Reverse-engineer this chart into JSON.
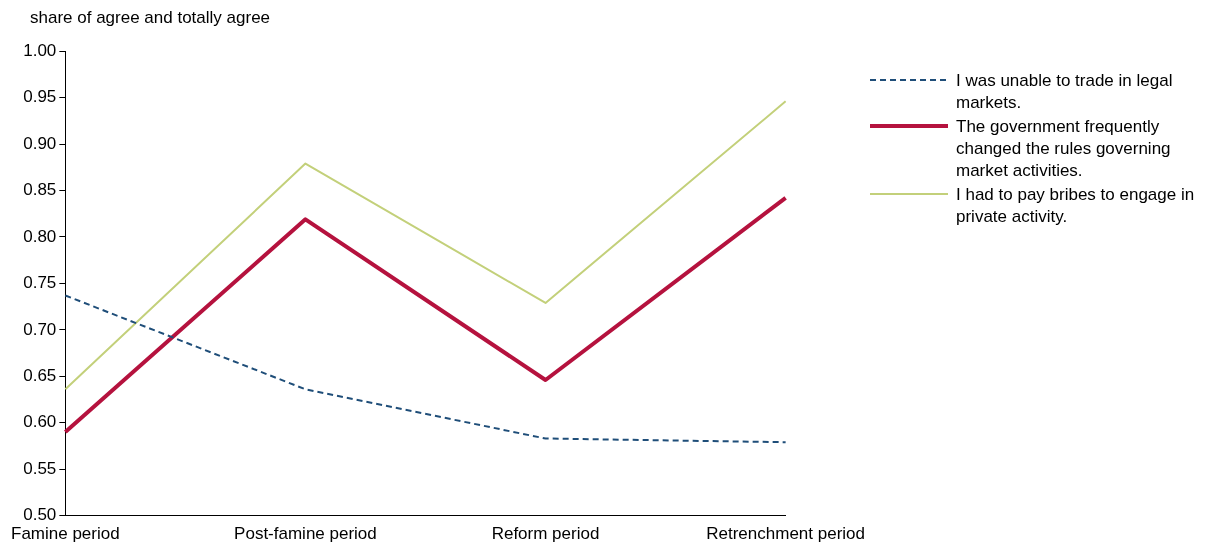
{
  "chart_data": {
    "type": "line",
    "ylabel": "share of agree and totally agree",
    "categories": [
      "Famine period",
      "Post-famine period",
      "Reform period",
      "Retrenchment period"
    ],
    "ylim": [
      0.5,
      1.0
    ],
    "yticks": [
      {
        "value": 0.5,
        "label": "0.50"
      },
      {
        "value": 0.55,
        "label": "0.55"
      },
      {
        "value": 0.6,
        "label": "0.60"
      },
      {
        "value": 0.65,
        "label": "0.65"
      },
      {
        "value": 0.7,
        "label": "0.70"
      },
      {
        "value": 0.75,
        "label": "0.75"
      },
      {
        "value": 0.8,
        "label": "0.80"
      },
      {
        "value": 0.85,
        "label": "0.85"
      },
      {
        "value": 0.9,
        "label": "0.90"
      },
      {
        "value": 0.95,
        "label": "0.95"
      },
      {
        "value": 1.0,
        "label": "1.00"
      }
    ],
    "grid": false,
    "legend": "right",
    "marker": "none",
    "series": [
      {
        "name": "I was unable to trade in legal markets.",
        "color": "#1f4e79",
        "line_style": "dashed",
        "values": [
          0.737,
          0.636,
          0.583,
          0.579
        ]
      },
      {
        "name": "The government frequently changed the rules governing market activities.",
        "color": "#b5123e",
        "line_style": "solid",
        "values": [
          0.59,
          0.819,
          0.646,
          0.842
        ]
      },
      {
        "name": "I had to pay bribes to engage in private activity.",
        "color": "#c3d07a",
        "line_style": "solid",
        "values": [
          0.636,
          0.879,
          0.729,
          0.946
        ]
      }
    ]
  }
}
